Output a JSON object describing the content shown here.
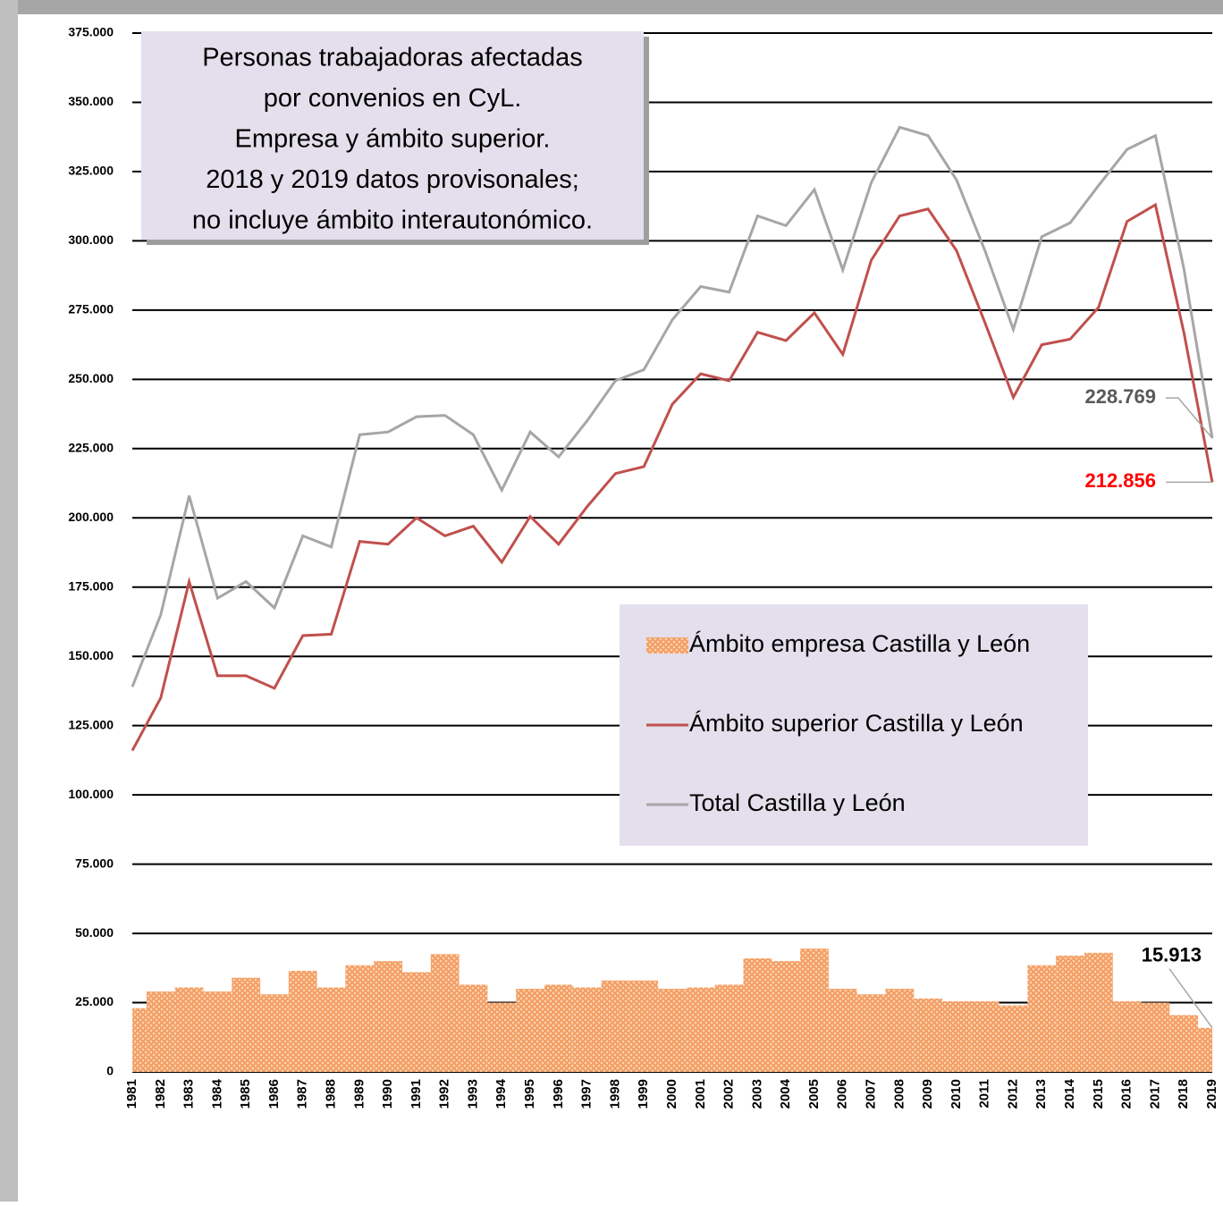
{
  "chart_data": {
    "type": "bar_line",
    "title": [
      "Personas trabajadoras afectadas",
      "por convenios  en CyL.",
      "Empresa y ámbito superior.",
      "2018 y 2019 datos provisonales;",
      "no incluye  ámbito interautonómico."
    ],
    "categories": [
      "1981",
      "1982",
      "1983",
      "1984",
      "1985",
      "1986",
      "1987",
      "1988",
      "1989",
      "1990",
      "1991",
      "1992",
      "1993",
      "1994",
      "1995",
      "1996",
      "1997",
      "1998",
      "1999",
      "2000",
      "2001",
      "2002",
      "2003",
      "2004",
      "2005",
      "2006",
      "2007",
      "2008",
      "2009",
      "2010",
      "2011",
      "2012",
      "2013",
      "2014",
      "2015",
      "2016",
      "2017",
      "2018",
      "2019"
    ],
    "series": [
      {
        "name": "Ámbito empresa Castilla y León",
        "kind": "bar",
        "color": "#f4a26a",
        "values": [
          23000,
          29000,
          30500,
          29000,
          34000,
          28000,
          36500,
          30500,
          38500,
          40000,
          36000,
          42500,
          31500,
          25000,
          30000,
          31500,
          30500,
          33000,
          33000,
          30000,
          30500,
          31500,
          41000,
          40000,
          44500,
          30000,
          28000,
          30000,
          26500,
          25500,
          25500,
          24000,
          38500,
          42000,
          43000,
          25500,
          25000,
          20500,
          15913
        ],
        "value_labels": [
          null,
          null,
          null,
          null,
          null,
          null,
          null,
          null,
          null,
          null,
          null,
          null,
          null,
          null,
          null,
          null,
          null,
          null,
          null,
          null,
          null,
          null,
          null,
          null,
          null,
          null,
          null,
          null,
          null,
          null,
          null,
          null,
          null,
          null,
          null,
          null,
          null,
          null,
          "15.913"
        ],
        "label_color": "#000000"
      },
      {
        "name": "Ámbito superior Castilla y León",
        "kind": "line",
        "color": "#c0504d",
        "values": [
          116000,
          135000,
          177000,
          143000,
          143000,
          138500,
          157500,
          158000,
          191500,
          190500,
          200000,
          193500,
          197000,
          184000,
          200500,
          190500,
          204000,
          216000,
          218500,
          241000,
          252000,
          249500,
          267000,
          264000,
          274000,
          259000,
          293000,
          309000,
          311500,
          296500,
          270500,
          243500,
          262500,
          264500,
          276000,
          307000,
          313000,
          267000,
          212856
        ],
        "value_labels": [
          null,
          null,
          null,
          null,
          null,
          null,
          null,
          null,
          null,
          null,
          null,
          null,
          null,
          null,
          null,
          null,
          null,
          null,
          null,
          null,
          null,
          null,
          null,
          null,
          null,
          null,
          null,
          null,
          null,
          null,
          null,
          null,
          null,
          null,
          null,
          null,
          null,
          null,
          "212.856"
        ],
        "label_color": "#ff0000"
      },
      {
        "name": "Total Castilla y León",
        "kind": "line",
        "color": "#a6a6a6",
        "values": [
          139000,
          165000,
          208000,
          171000,
          177000,
          167500,
          193500,
          189500,
          230000,
          231000,
          236500,
          237000,
          230000,
          210000,
          231000,
          222000,
          235000,
          249500,
          253500,
          271500,
          283500,
          281500,
          309000,
          305500,
          318500,
          289500,
          321000,
          341000,
          338000,
          322000,
          296500,
          268000,
          301500,
          306500,
          320000,
          333000,
          338000,
          290000,
          228769
        ],
        "value_labels": [
          null,
          null,
          null,
          null,
          null,
          null,
          null,
          null,
          null,
          null,
          null,
          null,
          null,
          null,
          null,
          null,
          null,
          null,
          null,
          null,
          null,
          null,
          null,
          null,
          null,
          null,
          null,
          null,
          null,
          null,
          null,
          null,
          null,
          null,
          null,
          null,
          null,
          null,
          "228.769"
        ],
        "label_color": "#595959"
      }
    ],
    "ylim": [
      0,
      375000
    ],
    "yticks": [
      0,
      {
        "value": 25000,
        "label": "25.000"
      },
      {
        "value": 50000,
        "label": "50.000"
      },
      {
        "value": 75000,
        "label": "75.000"
      },
      {
        "value": 100000,
        "label": "100.000"
      },
      {
        "value": 125000,
        "label": "125.000"
      },
      {
        "value": 150000,
        "label": "150.000"
      },
      {
        "value": 175000,
        "label": "175.000"
      },
      {
        "value": 200000,
        "label": "200.000"
      },
      {
        "value": 225000,
        "label": "225.000"
      },
      {
        "value": 250000,
        "label": "250.000"
      },
      {
        "value": 275000,
        "label": "275.000"
      },
      {
        "value": 300000,
        "label": "300.000"
      },
      {
        "value": 325000,
        "label": "325.000"
      },
      {
        "value": 350000,
        "label": "350.000"
      },
      {
        "value": 375000,
        "label": "375.000"
      }
    ],
    "grid": true
  }
}
